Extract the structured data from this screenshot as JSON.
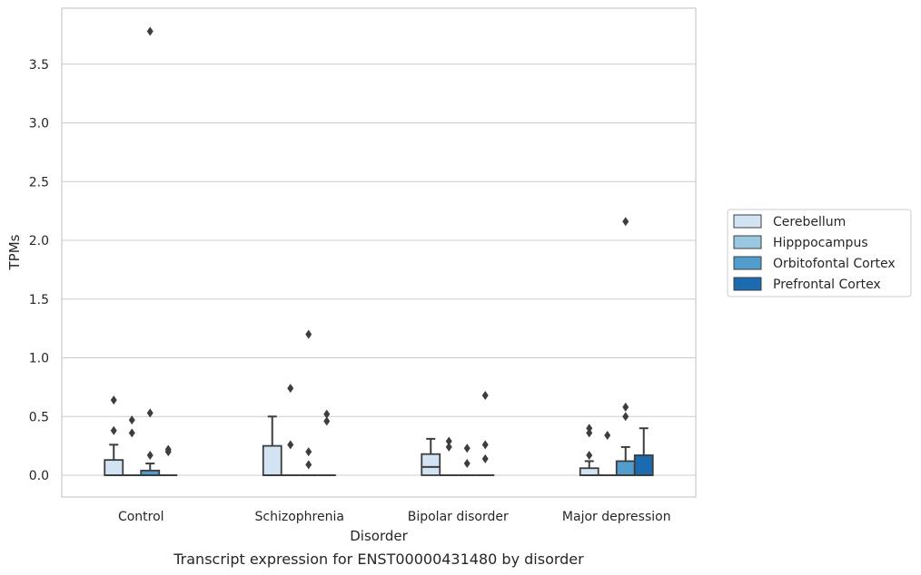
{
  "chart_data": {
    "type": "box",
    "xlabel": "Disorder",
    "ylabel": "TPMs",
    "caption": "Transcript expression for ENST00000431480 by disorder",
    "categories": [
      "Control",
      "Schizophrenia",
      "Bipolar disorder",
      "Major depression"
    ],
    "ylim": [
      -0.18,
      3.98
    ],
    "yticks": [
      "0.0",
      "0.5",
      "1.0",
      "1.5",
      "2.0",
      "2.5",
      "3.0",
      "3.5"
    ],
    "grid": "horizontal",
    "legend_position": "right",
    "series": [
      {
        "name": "Cerebellum",
        "color": "#d2e3f3",
        "boxes": [
          {
            "q1": 0.0,
            "median": 0.0,
            "q3": 0.13,
            "whisker_low": 0.0,
            "whisker_high": 0.26,
            "outliers": [
              0.64,
              0.38
            ]
          },
          {
            "q1": 0.0,
            "median": 0.0,
            "q3": 0.25,
            "whisker_low": 0.0,
            "whisker_high": 0.5,
            "outliers": []
          },
          {
            "q1": 0.0,
            "median": 0.07,
            "q3": 0.18,
            "whisker_low": 0.0,
            "whisker_high": 0.31,
            "outliers": []
          },
          {
            "q1": 0.0,
            "median": 0.0,
            "q3": 0.06,
            "whisker_low": 0.0,
            "whisker_high": 0.12,
            "outliers": [
              0.4,
              0.36,
              0.17
            ]
          }
        ]
      },
      {
        "name": "Hipppocampus",
        "color": "#9ac8e0",
        "boxes": [
          {
            "q1": 0.0,
            "median": 0.0,
            "q3": 0.0,
            "whisker_low": 0.0,
            "whisker_high": 0.0,
            "outliers": [
              0.47,
              0.36
            ]
          },
          {
            "q1": 0.0,
            "median": 0.0,
            "q3": 0.0,
            "whisker_low": 0.0,
            "whisker_high": 0.0,
            "outliers": [
              0.74,
              0.26
            ]
          },
          {
            "q1": 0.0,
            "median": 0.0,
            "q3": 0.0,
            "whisker_low": 0.0,
            "whisker_high": 0.0,
            "outliers": [
              0.29,
              0.24
            ]
          },
          {
            "q1": 0.0,
            "median": 0.0,
            "q3": 0.0,
            "whisker_low": 0.0,
            "whisker_high": 0.0,
            "outliers": [
              0.34
            ]
          }
        ]
      },
      {
        "name": "Orbitofontal Cortex",
        "color": "#529dcc",
        "boxes": [
          {
            "q1": 0.0,
            "median": 0.0,
            "q3": 0.04,
            "whisker_low": 0.0,
            "whisker_high": 0.1,
            "outliers": [
              3.78,
              0.53,
              0.17
            ]
          },
          {
            "q1": 0.0,
            "median": 0.0,
            "q3": 0.0,
            "whisker_low": 0.0,
            "whisker_high": 0.0,
            "outliers": [
              1.2,
              0.2,
              0.09
            ]
          },
          {
            "q1": 0.0,
            "median": 0.0,
            "q3": 0.0,
            "whisker_low": 0.0,
            "whisker_high": 0.0,
            "outliers": [
              0.23,
              0.1
            ]
          },
          {
            "q1": 0.0,
            "median": 0.0,
            "q3": 0.12,
            "whisker_low": 0.0,
            "whisker_high": 0.24,
            "outliers": [
              2.16,
              0.58,
              0.5
            ]
          }
        ]
      },
      {
        "name": "Prefrontal Cortex",
        "color": "#1c6aaf",
        "boxes": [
          {
            "q1": 0.0,
            "median": 0.0,
            "q3": 0.0,
            "whisker_low": 0.0,
            "whisker_high": 0.0,
            "outliers": [
              0.22,
              0.2
            ]
          },
          {
            "q1": 0.0,
            "median": 0.0,
            "q3": 0.0,
            "whisker_low": 0.0,
            "whisker_high": 0.0,
            "outliers": [
              0.52,
              0.46
            ]
          },
          {
            "q1": 0.0,
            "median": 0.0,
            "q3": 0.0,
            "whisker_low": 0.0,
            "whisker_high": 0.0,
            "outliers": [
              0.68,
              0.26,
              0.14
            ]
          },
          {
            "q1": 0.0,
            "median": 0.0,
            "q3": 0.17,
            "whisker_low": 0.0,
            "whisker_high": 0.4,
            "outliers": []
          }
        ]
      }
    ]
  }
}
